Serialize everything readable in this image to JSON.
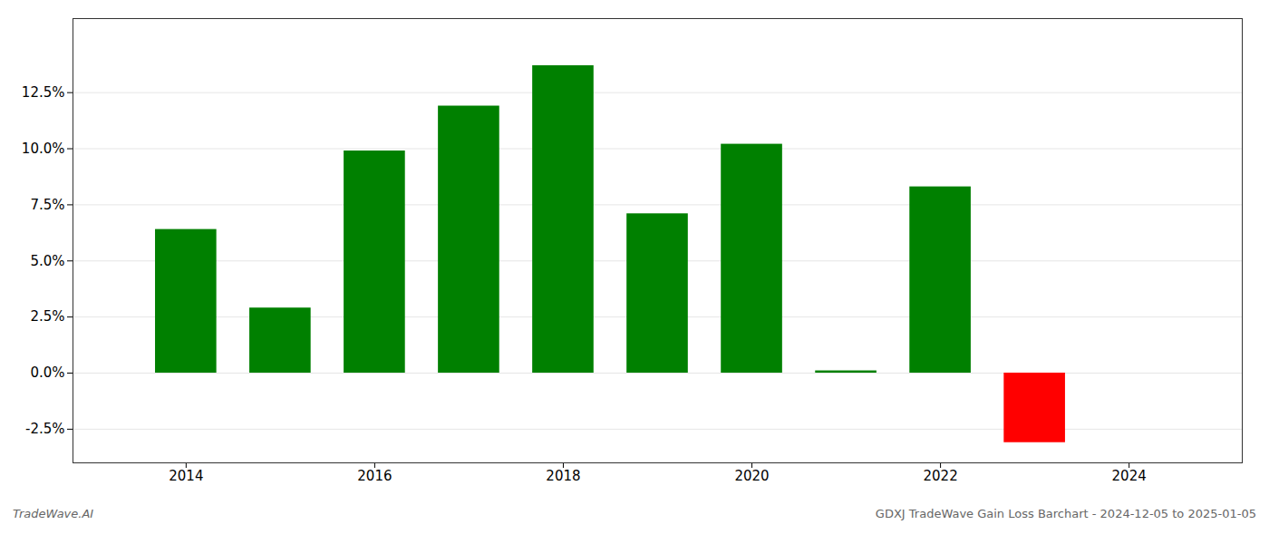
{
  "chart_data": {
    "type": "bar",
    "x": [
      2014,
      2015,
      2016,
      2017,
      2018,
      2019,
      2020,
      2021,
      2022,
      2023
    ],
    "values": [
      0.064,
      0.029,
      0.099,
      0.119,
      0.137,
      0.071,
      0.102,
      0.001,
      0.083,
      -0.031
    ],
    "colors": [
      "#008000",
      "#008000",
      "#008000",
      "#008000",
      "#008000",
      "#008000",
      "#008000",
      "#008000",
      "#008000",
      "#ff0000"
    ],
    "xlim": [
      2012.8,
      2025.2
    ],
    "xticks": [
      2014,
      2016,
      2018,
      2020,
      2022,
      2024
    ],
    "ylim": [
      -0.04,
      0.158
    ],
    "yticks": [
      {
        "value": -0.025,
        "label": "-2.5%"
      },
      {
        "value": 0.0,
        "label": "0.0%"
      },
      {
        "value": 0.025,
        "label": "2.5%"
      },
      {
        "value": 0.05,
        "label": "5.0%"
      },
      {
        "value": 0.075,
        "label": "7.5%"
      },
      {
        "value": 0.1,
        "label": "10.0%"
      },
      {
        "value": 0.125,
        "label": "12.5%"
      }
    ],
    "grid": true,
    "annotations": [
      "TradeWave.AI",
      "GDXJ TradeWave Gain Loss Barchart - 2024-12-05 to 2025-01-05"
    ]
  }
}
